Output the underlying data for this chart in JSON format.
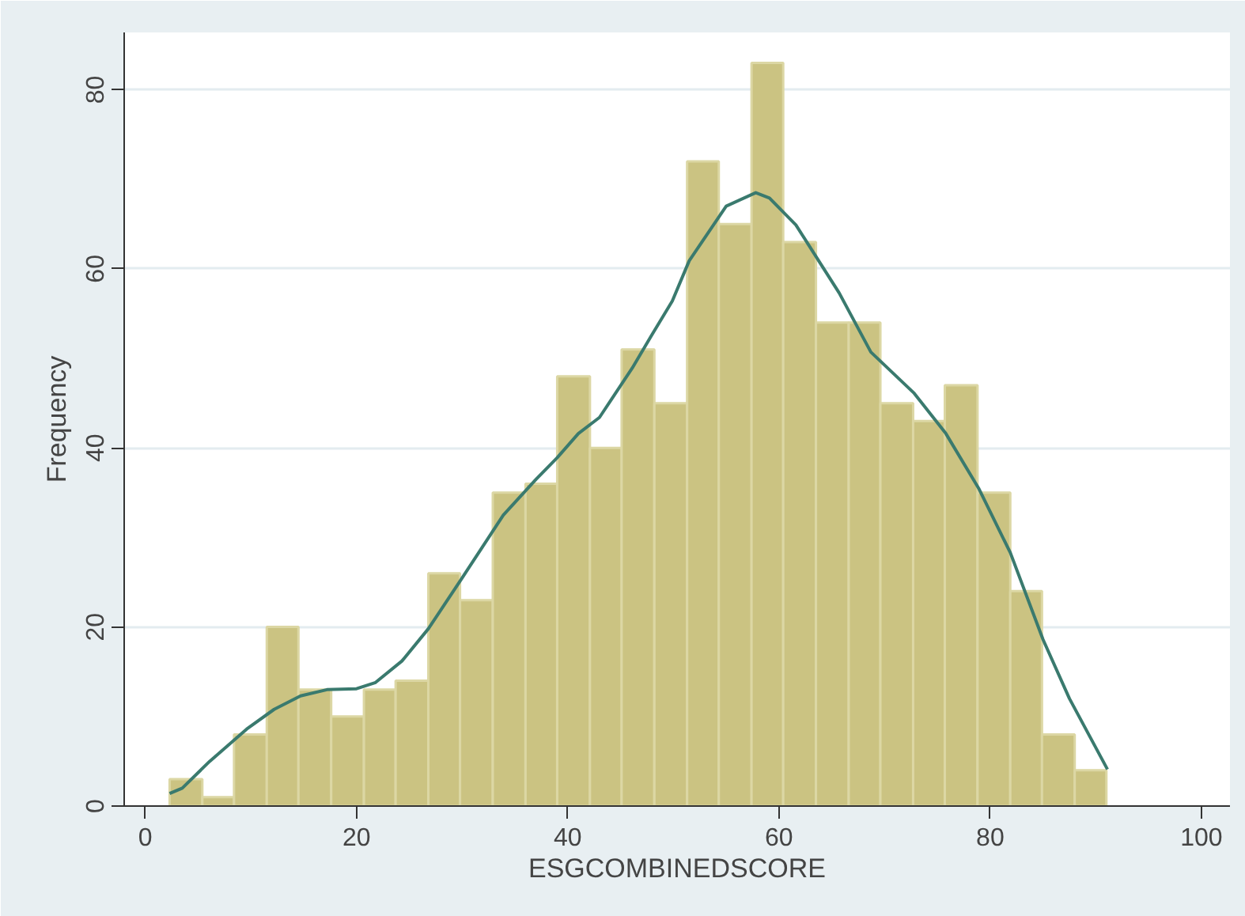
{
  "chart_data": {
    "type": "histogram",
    "xlabel": "ESGCOMBINEDSCORE",
    "ylabel": "Frequency",
    "bins": [
      2.3,
      5.4,
      8.4,
      11.5,
      14.5,
      17.6,
      20.7,
      23.7,
      26.8,
      29.8,
      32.9,
      36.0,
      39.0,
      42.1,
      45.1,
      48.2,
      51.3,
      54.3,
      57.4,
      60.4,
      63.5,
      66.6,
      69.6,
      72.7,
      75.7,
      78.8,
      81.9,
      84.9,
      88.0,
      91.0
    ],
    "values": [
      3,
      1,
      8,
      20,
      13,
      10,
      13,
      14,
      26,
      23,
      35,
      36,
      48,
      40,
      51,
      45,
      72,
      65,
      83,
      63,
      54,
      54,
      45,
      43,
      47,
      35,
      24,
      8,
      4
    ],
    "color": "#cbc382",
    "series": [
      {
        "type": "line",
        "color": "#3a7a6e",
        "x": [
          2.3,
          3.5,
          6.1,
          9.6,
          12.2,
          14.7,
          17.2,
          20.0,
          21.8,
          24.3,
          26.8,
          29.9,
          33.9,
          37.0,
          39.0,
          41.0,
          43.0,
          46.1,
          47.9,
          49.9,
          51.5,
          55.0,
          57.8,
          59.1,
          61.6,
          65.7,
          68.7,
          72.8,
          75.8,
          78.9,
          81.9,
          85.0,
          87.5,
          91.1
        ],
        "values": [
          1.4,
          2.0,
          5.0,
          8.6,
          10.8,
          12.3,
          13.0,
          13.1,
          13.8,
          16.2,
          19.8,
          25.3,
          32.5,
          36.5,
          38.9,
          41.6,
          43.4,
          48.9,
          52.5,
          56.4,
          60.9,
          67.0,
          68.5,
          67.9,
          64.9,
          57.3,
          50.7,
          46.1,
          41.6,
          35.5,
          28.3,
          18.6,
          12.0,
          4.1
        ]
      }
    ],
    "xlim": [
      -2,
      102.7
    ],
    "ylim": [
      0,
      86.4
    ],
    "xticks": [
      0,
      20,
      40,
      60,
      80,
      100
    ],
    "yticks": [
      0,
      20,
      40,
      60,
      80
    ],
    "grid": "y"
  }
}
